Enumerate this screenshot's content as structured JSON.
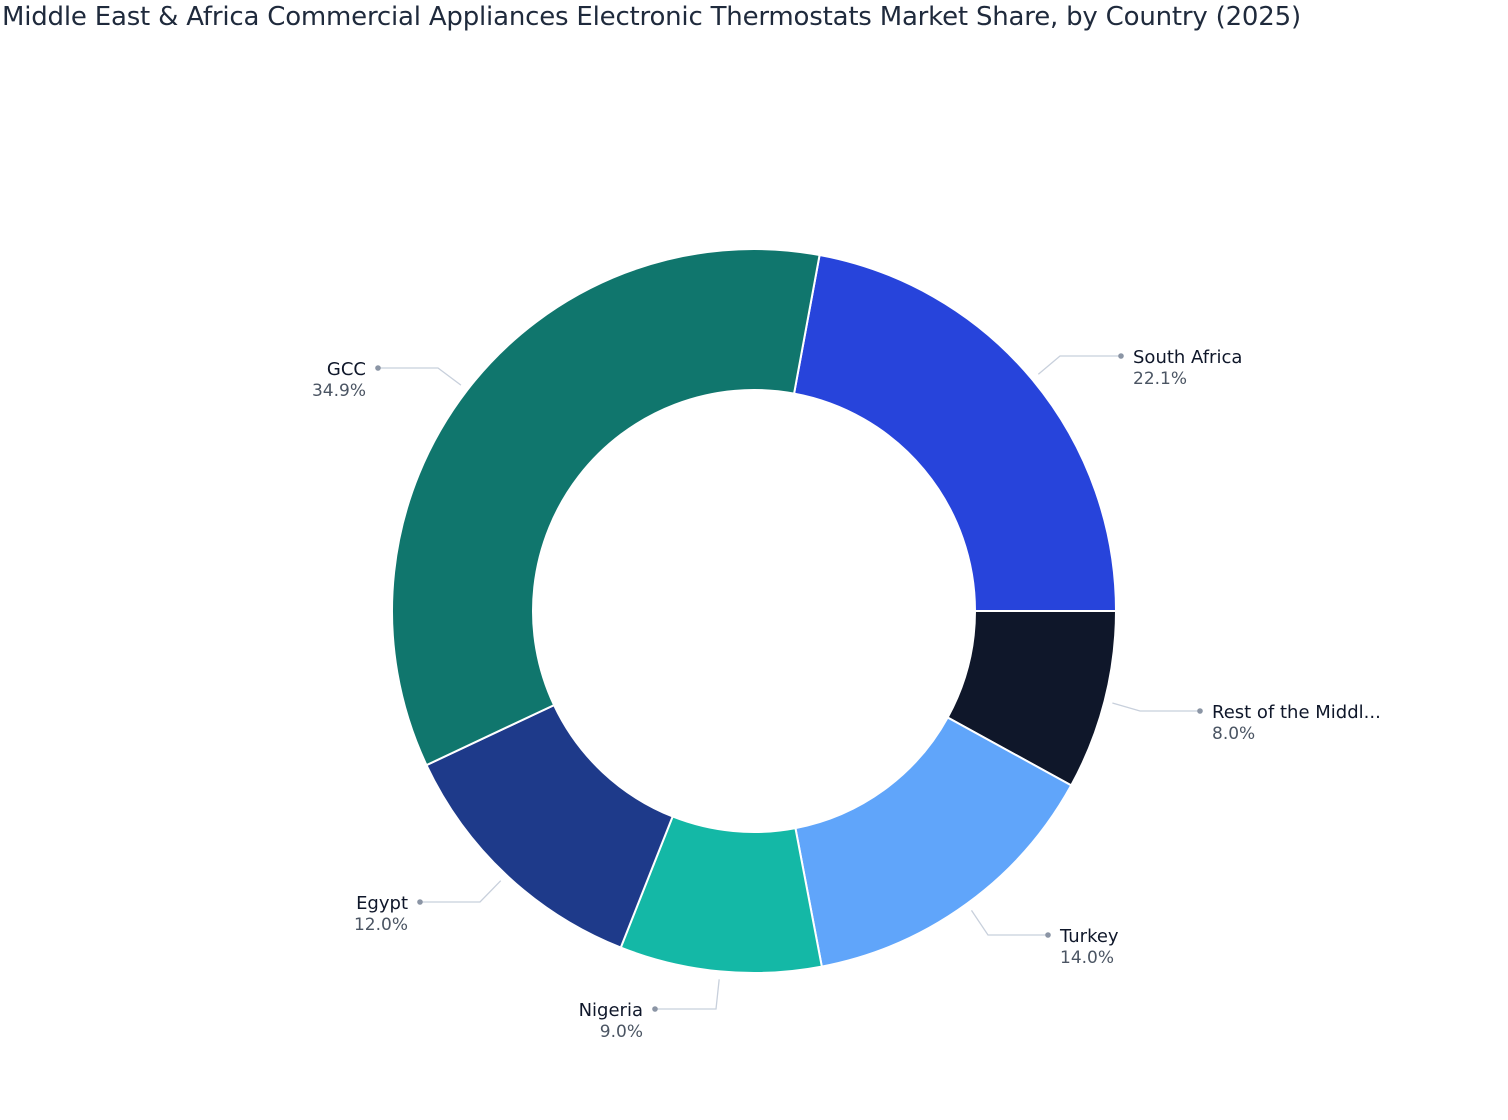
{
  "title": "Middle East & Africa Commercial Appliances Electronic Thermostats Market Share, by Country (2025)",
  "chart_data": {
    "type": "pie",
    "subtype": "donut",
    "title": "Middle East & Africa Commercial Appliances Electronic Thermostats Market Share, by Country (2025)",
    "categories": [
      "South Africa",
      "Rest of the Middl...",
      "Turkey",
      "Nigeria",
      "Egypt",
      "GCC"
    ],
    "values": [
      22.1,
      8.0,
      14.0,
      9.0,
      12.0,
      34.9
    ],
    "labels": [
      "22.1%",
      "8.0%",
      "14.0%",
      "9.0%",
      "12.0%",
      "34.9%"
    ],
    "colors": [
      "#2744db",
      "#0f172a",
      "#60a5fa",
      "#14b8a6",
      "#1e3a8a",
      "#10766d"
    ],
    "start_angle_deg": 10.44,
    "direction": "clockwise",
    "hole": 0.61,
    "legend": "none (outside labels with leader lines)"
  }
}
